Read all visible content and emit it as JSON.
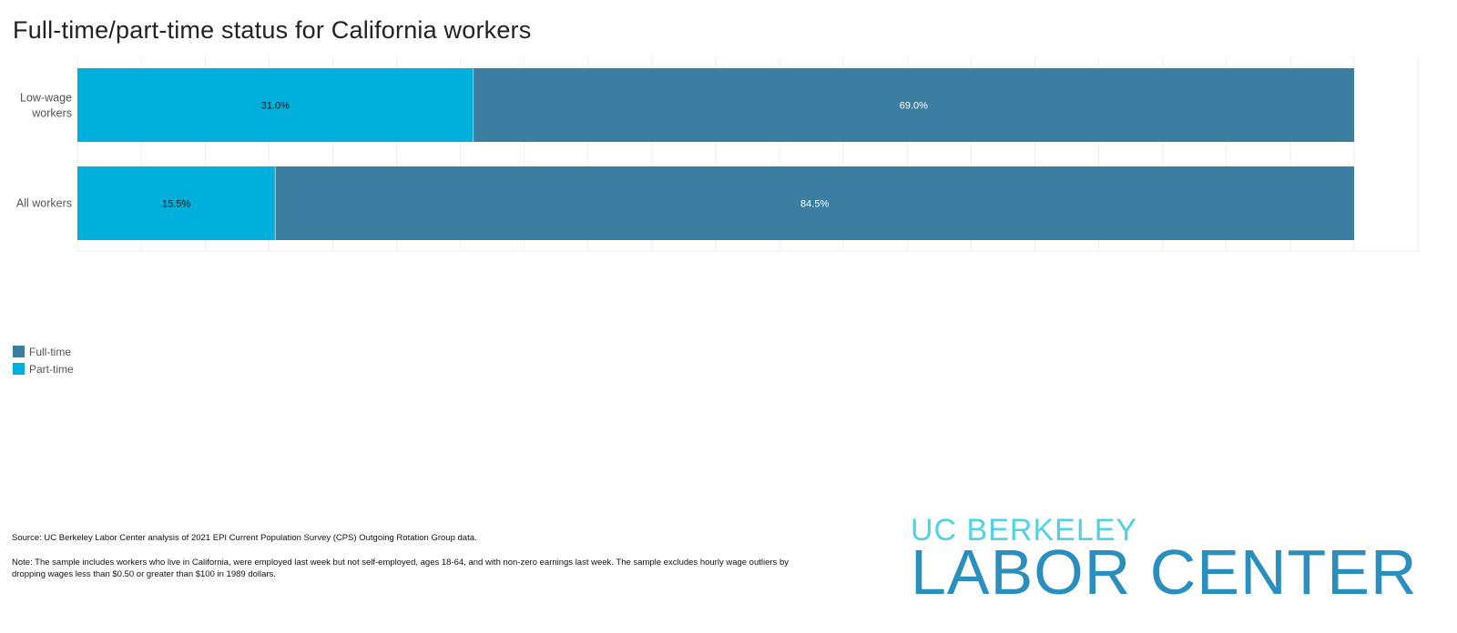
{
  "chart_data": {
    "type": "bar",
    "orientation": "horizontal",
    "stacked": true,
    "title": "Full-time/part-time status for California workers",
    "categories": [
      "Low-wage workers",
      "All workers"
    ],
    "series": [
      {
        "name": "Part-time",
        "values": [
          31.0,
          15.5
        ],
        "color": "#00b0dc",
        "labels": [
          "31.0%",
          "15.5%"
        ]
      },
      {
        "name": "Full-time",
        "values": [
          69.0,
          84.5
        ],
        "color": "#3b7ea1",
        "labels": [
          "69.0%",
          "84.5%"
        ]
      }
    ],
    "xlim": [
      0,
      100
    ],
    "grid": true,
    "legend": {
      "position": "bottom-left",
      "items": [
        {
          "label": "Full-time",
          "color": "#3b7ea1"
        },
        {
          "label": "Part-time",
          "color": "#00b0dc"
        }
      ]
    }
  },
  "source": "Source: UC Berkeley Labor Center analysis of 2021 EPI Current Population Survey (CPS) Outgoing Rotation Group data.",
  "note": "Note: The sample includes workers who live in California, were employed last week but not self-employed, ages 18-64, and with non-zero earnings last week. The sample excludes hourly wage outliers by dropping wages less than $0.50 or greater than $100 in 1989 dollars.",
  "logo": {
    "line1": "UC BERKELEY",
    "line2": "LABOR CENTER"
  }
}
